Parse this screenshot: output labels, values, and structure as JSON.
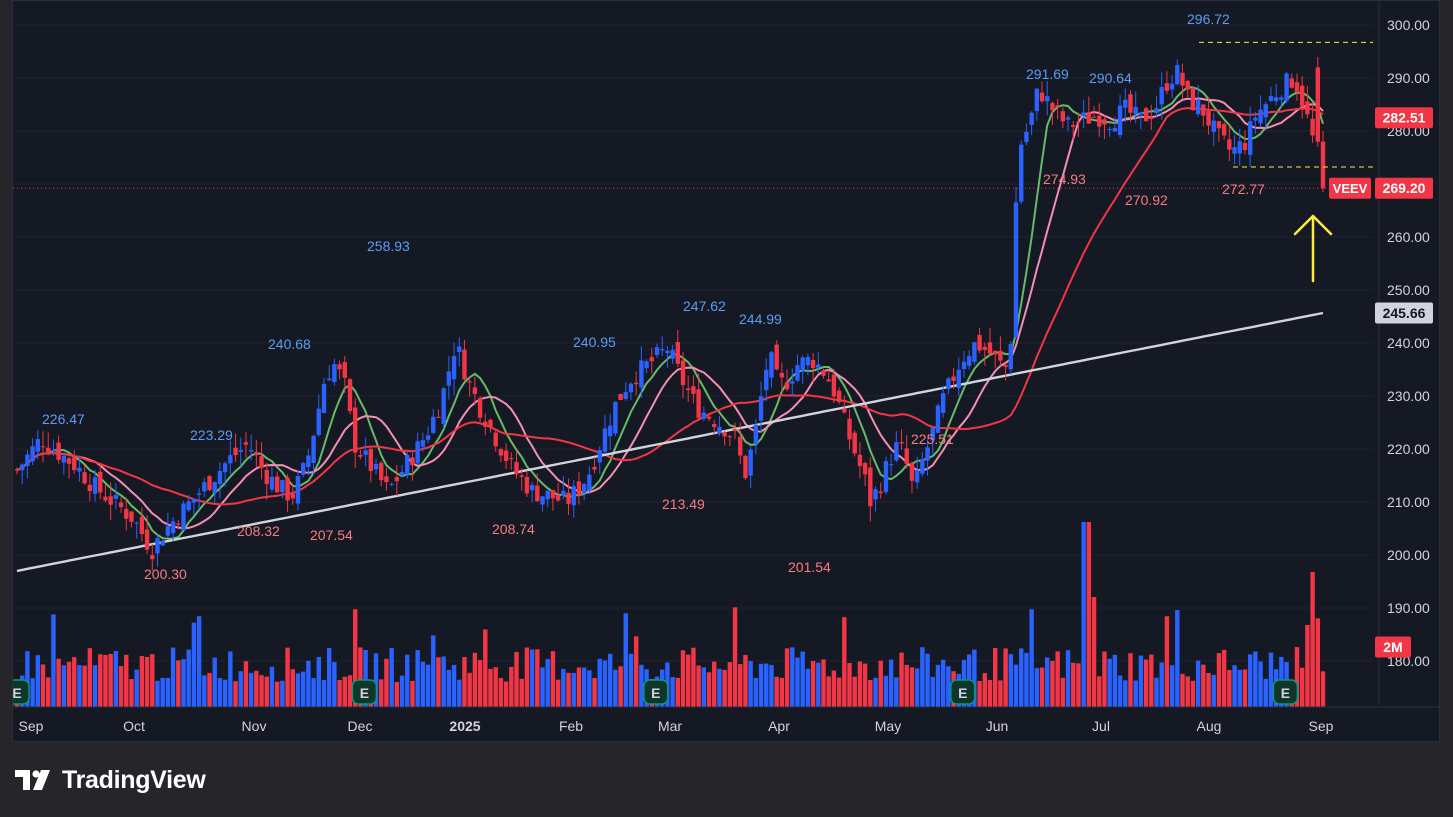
{
  "brand": {
    "name": "TradingView",
    "logo_icon": "tradingview-logo-icon"
  },
  "colors": {
    "background": "#151924",
    "up_candle": "#2962ff",
    "down_candle": "#f23645",
    "ma_fast": "#66bb6a",
    "ma_mid": "#f48fb1",
    "ma_slow": "#f23645",
    "ma_long": "#d1d4dc",
    "annotation": "#ffeb3b"
  },
  "chart_data": {
    "type": "candlestick",
    "ticker": "VEEV",
    "price_axis": {
      "ticks": [
        180,
        190,
        200,
        210,
        220,
        230,
        240,
        250,
        260,
        270,
        280,
        290,
        300
      ],
      "ylim": [
        172,
        304
      ]
    },
    "x_axis": {
      "labels": [
        "Sep",
        "Oct",
        "Nov",
        "Dec",
        "2025",
        "Feb",
        "Mar",
        "Apr",
        "May",
        "Jun",
        "Jul",
        "Aug",
        "Sep"
      ],
      "bold_label": "2025"
    },
    "price_badges": [
      {
        "name": "last",
        "label": "VEEV",
        "value": 269.2,
        "text": "269.20",
        "color": "#f23645"
      },
      {
        "name": "ma-20",
        "value": 282.51,
        "text": "282.51",
        "color": "#f23645"
      },
      {
        "name": "ma-200",
        "value": 245.66,
        "text": "245.66",
        "color": "#d1d4dc"
      },
      {
        "name": "volume",
        "text": "2M",
        "color": "#f23645"
      }
    ],
    "price_annotations": [
      {
        "text": "226.47",
        "value": 226.47,
        "kind": "high"
      },
      {
        "text": "200.30",
        "value": 200.3,
        "kind": "low"
      },
      {
        "text": "223.29",
        "value": 223.29,
        "kind": "high"
      },
      {
        "text": "208.32",
        "value": 208.32,
        "kind": "low"
      },
      {
        "text": "240.68",
        "value": 240.68,
        "kind": "high"
      },
      {
        "text": "207.54",
        "value": 207.54,
        "kind": "low"
      },
      {
        "text": "258.93",
        "value": 258.93,
        "kind": "high"
      },
      {
        "text": "208.74",
        "value": 208.74,
        "kind": "low"
      },
      {
        "text": "240.95",
        "value": 240.95,
        "kind": "high"
      },
      {
        "text": "213.49",
        "value": 213.49,
        "kind": "low"
      },
      {
        "text": "247.62",
        "value": 247.62,
        "kind": "high"
      },
      {
        "text": "244.99",
        "value": 244.99,
        "kind": "high"
      },
      {
        "text": "201.54",
        "value": 201.54,
        "kind": "low"
      },
      {
        "text": "225.51",
        "value": 225.51,
        "kind": "low"
      },
      {
        "text": "291.69",
        "value": 291.69,
        "kind": "high"
      },
      {
        "text": "274.93",
        "value": 274.93,
        "kind": "low"
      },
      {
        "text": "290.64",
        "value": 290.64,
        "kind": "high"
      },
      {
        "text": "270.92",
        "value": 270.92,
        "kind": "low"
      },
      {
        "text": "296.72",
        "value": 296.72,
        "kind": "high"
      },
      {
        "text": "272.77",
        "value": 272.77,
        "kind": "low"
      }
    ],
    "horizontal_levels": [
      {
        "value": 296.72,
        "style": "dashed",
        "color": "#ffeb3b"
      },
      {
        "value": 273.2,
        "style": "dashed",
        "color": "#ffeb3b"
      },
      {
        "value": 269.2,
        "style": "dotted",
        "color": "#f23645"
      }
    ],
    "earnings_markers": {
      "label": "E",
      "count": 5
    },
    "moving_averages": [
      {
        "key": "fast",
        "color": "#66bb6a"
      },
      {
        "key": "mid",
        "color": "#f48fb1"
      },
      {
        "key": "slow",
        "color": "#f23645"
      },
      {
        "key": "long",
        "color": "#d1d4dc"
      }
    ],
    "key_points": [
      {
        "month": "Sep 2024",
        "close": 218
      },
      {
        "month": "Oct 2024",
        "close": 204
      },
      {
        "month": "Nov 2024",
        "close": 230
      },
      {
        "month": "Dec 2024",
        "close": 250
      },
      {
        "month": "Jan 2025",
        "close": 212
      },
      {
        "month": "Feb 2025",
        "close": 238
      },
      {
        "month": "Mar 2025",
        "close": 232
      },
      {
        "month": "Apr 2025",
        "close": 212
      },
      {
        "month": "May 2025",
        "close": 238
      },
      {
        "month": "Jun 2025",
        "close": 284
      },
      {
        "month": "Jul 2025",
        "close": 282
      },
      {
        "month": "Aug 2025",
        "close": 282
      },
      {
        "month": "Sep 2025",
        "close": 269.2
      }
    ]
  }
}
